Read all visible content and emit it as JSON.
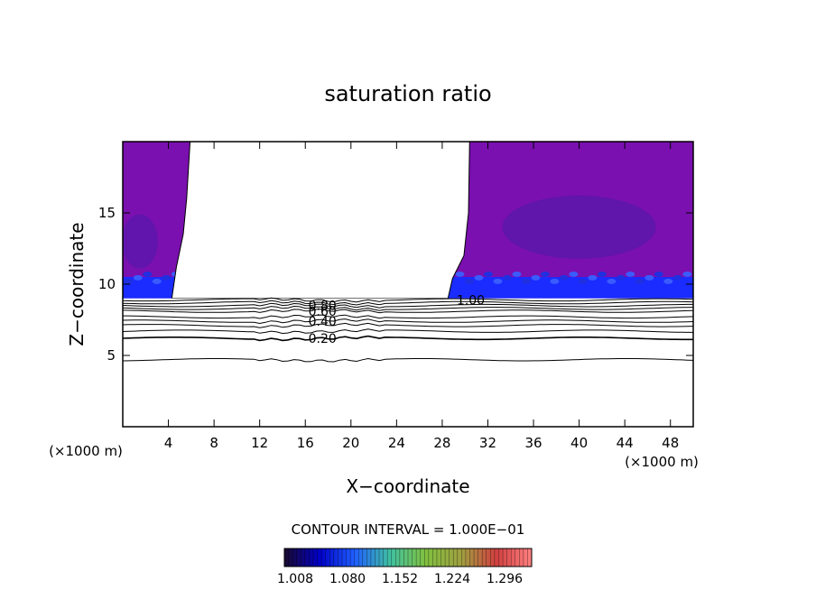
{
  "chart_data": {
    "type": "contour",
    "title": "saturation ratio",
    "xlabel": "X−coordinate",
    "ylabel": "Z−coordinate",
    "x_unit_left": "(×1000 m)",
    "x_unit_right": "(×1000 m)",
    "xlim": [
      0,
      50
    ],
    "ylim": [
      0,
      20
    ],
    "x_ticks": [
      4,
      8,
      12,
      16,
      20,
      24,
      28,
      32,
      36,
      40,
      44,
      48
    ],
    "y_ticks": [
      5,
      10,
      15
    ],
    "contour_interval_text": "CONTOUR INTERVAL = 1.000E−01",
    "contour_levels": [
      {
        "label": "0.20",
        "z": 6.2
      },
      {
        "label": "0.40",
        "z": 7.4
      },
      {
        "label": "0.60",
        "z": 8.1
      },
      {
        "label": "0.80",
        "z": 8.5
      },
      {
        "label": "1.00",
        "z": 8.9
      }
    ],
    "colorbar": {
      "tick_labels": [
        "1.008",
        "1.080",
        "1.152",
        "1.224",
        "1.296"
      ],
      "colors": [
        "#1a0a2e",
        "#0000c8",
        "#2060ff",
        "#40c0a0",
        "#80c040",
        "#a0a040",
        "#d04040",
        "#ff8080"
      ]
    },
    "fill_colors": {
      "upper": "#7a10b0",
      "deep": "#4a1aa8",
      "cloud_base": "#1a2cff",
      "cloud_base_light": "#3a5cff"
    },
    "clear_regions": [
      {
        "x_start": 5.9,
        "x_end": 29.5,
        "z_bottom": 9.0
      }
    ]
  }
}
